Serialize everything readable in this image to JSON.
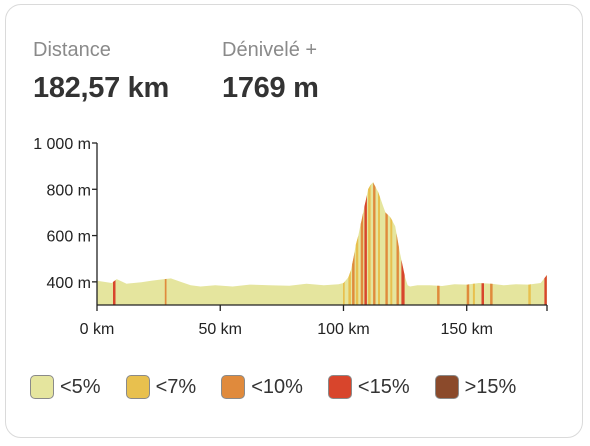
{
  "stats": {
    "distance": {
      "label": "Distance",
      "value": "182,57 km"
    },
    "elevation": {
      "label": "Dénivelé +",
      "value": "1769 m"
    }
  },
  "chart_data": {
    "type": "area",
    "xlabel": "",
    "ylabel": "",
    "xlim": [
      0,
      182.57
    ],
    "ylim": [
      300,
      1000
    ],
    "x_ticks": [
      {
        "value": 0,
        "label": "0 km"
      },
      {
        "value": 50,
        "label": "50 km"
      },
      {
        "value": 100,
        "label": "100 km"
      },
      {
        "value": 150,
        "label": "150 km"
      }
    ],
    "y_ticks": [
      {
        "value": 400,
        "label": "400 m"
      },
      {
        "value": 600,
        "label": "600 m"
      },
      {
        "value": 800,
        "label": "800 m"
      },
      {
        "value": 1000,
        "label": "1 000 m"
      }
    ],
    "grid": false,
    "legend_position": "bottom",
    "profile": {
      "x_km": [
        0,
        3,
        6,
        8,
        12,
        18,
        22,
        26,
        30,
        34,
        38,
        42,
        48,
        55,
        62,
        70,
        78,
        85,
        92,
        98,
        100,
        102,
        103,
        104,
        105,
        106,
        107,
        108,
        109,
        110,
        111,
        112,
        113,
        114,
        115,
        116,
        117,
        118,
        119,
        120,
        121,
        122,
        123,
        124,
        125,
        126,
        127,
        130,
        135,
        140,
        145,
        150,
        155,
        160,
        165,
        170,
        175,
        180,
        182.57
      ],
      "elevation_m": [
        405,
        400,
        395,
        412,
        392,
        398,
        405,
        410,
        415,
        400,
        385,
        380,
        385,
        380,
        388,
        385,
        383,
        392,
        385,
        390,
        395,
        420,
        450,
        500,
        560,
        600,
        650,
        700,
        750,
        800,
        820,
        830,
        810,
        790,
        760,
        730,
        700,
        690,
        680,
        660,
        640,
        580,
        520,
        470,
        420,
        385,
        380,
        385,
        385,
        382,
        390,
        388,
        395,
        392,
        385,
        390,
        388,
        395,
        430
      ]
    },
    "series": [
      {
        "name": "<5%",
        "color": "#e5e59e"
      },
      {
        "name": "<7%",
        "color": "#e8c04e"
      },
      {
        "name": "<10%",
        "color": "#e08a3c"
      },
      {
        "name": "<15%",
        "color": "#d8452c"
      },
      {
        "name": ">15%",
        "color": "#8b4a2b"
      }
    ],
    "gradient_segments": [
      {
        "from_km": 6.5,
        "to_km": 7.5,
        "class": "<15%"
      },
      {
        "from_km": 27.5,
        "to_km": 28.2,
        "class": "<10%"
      },
      {
        "from_km": 99.8,
        "to_km": 100.5,
        "class": "<7%"
      },
      {
        "from_km": 102,
        "to_km": 103,
        "class": "<7%"
      },
      {
        "from_km": 103.5,
        "to_km": 104.5,
        "class": "<10%"
      },
      {
        "from_km": 105,
        "to_km": 106,
        "class": "<7%"
      },
      {
        "from_km": 107,
        "to_km": 108,
        "class": "<10%"
      },
      {
        "from_km": 108.5,
        "to_km": 109.5,
        "class": "<15%"
      },
      {
        "from_km": 110,
        "to_km": 111,
        "class": "<7%"
      },
      {
        "from_km": 112,
        "to_km": 113,
        "class": "<10%"
      },
      {
        "from_km": 114,
        "to_km": 114.8,
        "class": "<7%"
      },
      {
        "from_km": 117,
        "to_km": 118,
        "class": "<10%"
      },
      {
        "from_km": 119,
        "to_km": 119.8,
        "class": "<7%"
      },
      {
        "from_km": 121.5,
        "to_km": 122.5,
        "class": "<10%"
      },
      {
        "from_km": 123.5,
        "to_km": 124.8,
        "class": "<15%"
      },
      {
        "from_km": 138,
        "to_km": 139,
        "class": "<10%"
      },
      {
        "from_km": 150,
        "to_km": 151,
        "class": "<10%"
      },
      {
        "from_km": 152.5,
        "to_km": 153.3,
        "class": "<7%"
      },
      {
        "from_km": 156,
        "to_km": 157,
        "class": "<15%"
      },
      {
        "from_km": 159.5,
        "to_km": 160.5,
        "class": "<10%"
      },
      {
        "from_km": 175,
        "to_km": 176,
        "class": "<7%"
      },
      {
        "from_km": 181.5,
        "to_km": 182.5,
        "class": "<15%"
      }
    ]
  }
}
